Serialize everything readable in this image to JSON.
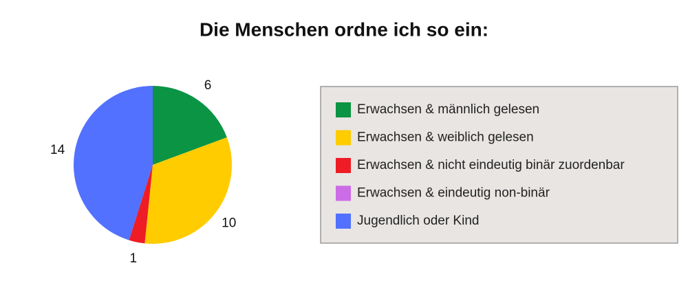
{
  "chart_data": {
    "type": "pie",
    "title": "Die Menschen ordne ich so ein:",
    "categories": [
      "Erwachsen & männlich gelesen",
      "Erwachsen & weiblich gelesen",
      "Erwachsen & nicht eindeutig binär zuordenbar",
      "Erwachsen & eindeutig non-binär",
      "Jugendlich oder Kind"
    ],
    "values": [
      6,
      10,
      1,
      0,
      14
    ],
    "colors": [
      "#0a9444",
      "#ffcc00",
      "#ee1c25",
      "#cc6ce7",
      "#5271ff"
    ]
  }
}
